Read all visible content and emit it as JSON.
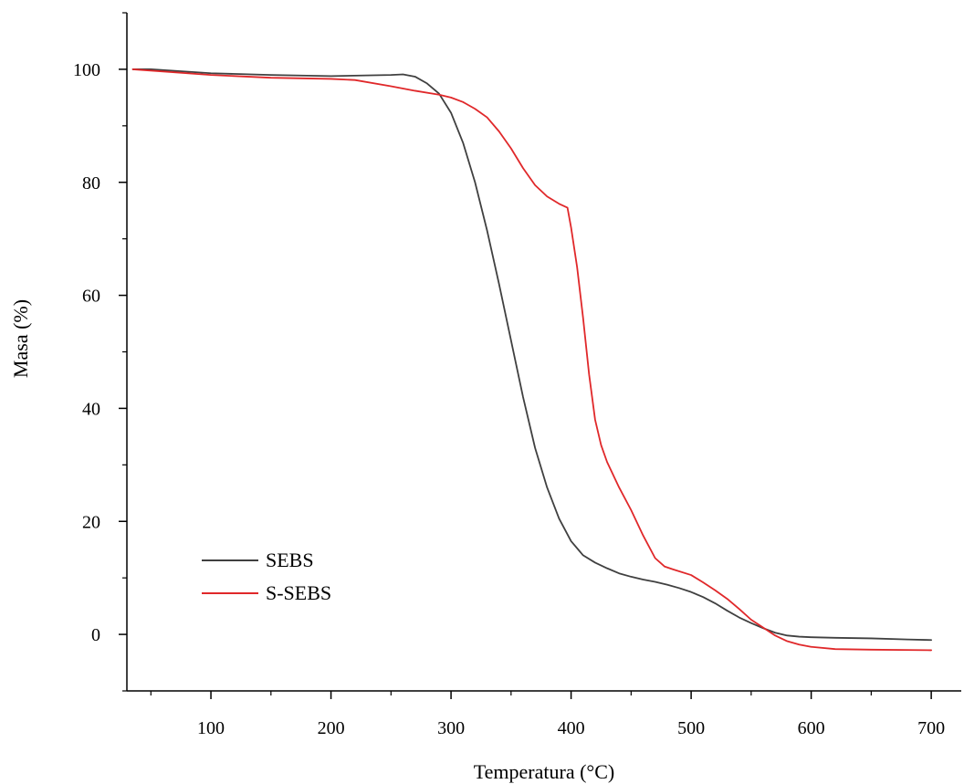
{
  "chart_data": {
    "type": "line",
    "title": "",
    "xlabel": "Temperatura (°C)",
    "ylabel": "Masa (%)",
    "xlim": [
      30,
      725
    ],
    "ylim": [
      -10,
      110
    ],
    "xticks": [
      100,
      200,
      300,
      400,
      500,
      600,
      700
    ],
    "yticks": [
      0,
      20,
      40,
      60,
      80,
      100
    ],
    "grid": false,
    "legend": "bottom-left",
    "series": [
      {
        "name": "SEBS",
        "color": "#404040",
        "x": [
          35,
          50,
          100,
          150,
          200,
          250,
          260,
          270,
          280,
          290,
          300,
          310,
          320,
          330,
          340,
          350,
          360,
          370,
          380,
          390,
          400,
          410,
          420,
          430,
          440,
          450,
          460,
          470,
          480,
          490,
          500,
          510,
          520,
          530,
          540,
          550,
          560,
          570,
          580,
          590,
          600,
          620,
          650,
          680,
          700
        ],
        "y": [
          100,
          100,
          99.3,
          99,
          98.8,
          99,
          99.1,
          98.7,
          97.5,
          95.7,
          92.3,
          87,
          80,
          71.5,
          62,
          52,
          42,
          33,
          26,
          20.5,
          16.5,
          14,
          12.7,
          11.7,
          10.8,
          10.2,
          9.7,
          9.3,
          8.8,
          8.2,
          7.5,
          6.6,
          5.5,
          4.2,
          3,
          2,
          1.1,
          0.3,
          -0.2,
          -0.4,
          -0.5,
          -0.6,
          -0.7,
          -0.9,
          -1.0
        ]
      },
      {
        "name": "S-SEBS",
        "color": "#e0282a",
        "x": [
          35,
          100,
          150,
          200,
          220,
          250,
          270,
          290,
          300,
          310,
          320,
          330,
          340,
          350,
          360,
          370,
          380,
          390,
          397,
          400,
          405,
          410,
          415,
          420,
          425,
          430,
          440,
          450,
          460,
          470,
          478,
          485,
          500,
          510,
          520,
          530,
          540,
          550,
          560,
          570,
          580,
          590,
          600,
          620,
          650,
          700
        ],
        "y": [
          100,
          99,
          98.5,
          98.3,
          98.1,
          97,
          96.2,
          95.5,
          95,
          94.2,
          93,
          91.5,
          89,
          86,
          82.5,
          79.5,
          77.5,
          76.2,
          75.5,
          72,
          65,
          56,
          46,
          38,
          33.5,
          30.5,
          26,
          22,
          17.5,
          13.5,
          12,
          11.5,
          10.5,
          9.2,
          7.8,
          6.3,
          4.5,
          2.6,
          1.2,
          -0.2,
          -1.2,
          -1.8,
          -2.2,
          -2.6,
          -2.7,
          -2.8
        ]
      }
    ]
  }
}
